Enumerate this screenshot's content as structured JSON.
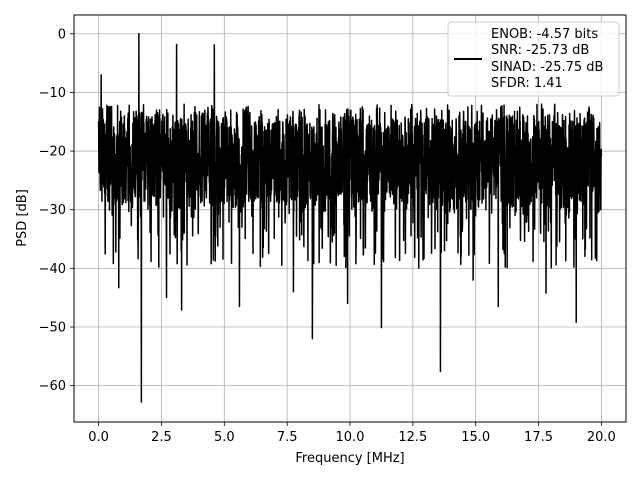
{
  "chart_data": {
    "type": "line",
    "title": "",
    "xlabel": "Frequency [MHz]",
    "ylabel": "PSD [dB]",
    "xlim": [
      -0.98,
      20.98
    ],
    "ylim": [
      -66.2,
      3.2
    ],
    "grid": true,
    "x_ticks": [
      0,
      2.5,
      5,
      7.5,
      10,
      12.5,
      15,
      17.5,
      20
    ],
    "x_tick_labels": [
      "0.0",
      "2.5",
      "5.0",
      "7.5",
      "10.0",
      "12.5",
      "15.0",
      "17.5",
      "20.0"
    ],
    "y_ticks": [
      0,
      -10,
      -20,
      -30,
      -40,
      -50,
      -60
    ],
    "y_tick_labels": [
      "0",
      "−10",
      "−20",
      "−30",
      "−40",
      "−50",
      "−60"
    ],
    "legend_position": "top-right",
    "legend_lines": [
      "ENOB: -4.57 bits",
      "SNR: -25.73 dB",
      "SINAD: -25.75 dB",
      "SFDR: 1.41"
    ],
    "series": [
      {
        "color": "#000000",
        "frequency_range_mhz": [
          0,
          20
        ],
        "noise_floor_band_db": [
          -32,
          -12
        ],
        "peak_db": 0.0,
        "peak_at_mhz": 1.6,
        "minimum_db": -62.8,
        "minimum_at_mhz": 1.7
      }
    ],
    "notable_spikes": [
      {
        "x": 1.6,
        "y": 0.0
      },
      {
        "x": 3.1,
        "y": -1.8
      },
      {
        "x": 4.6,
        "y": -1.9
      },
      {
        "x": 0.1,
        "y": -7.0
      }
    ],
    "notable_dips": [
      {
        "x": 1.7,
        "y": -62.8
      },
      {
        "x": 13.6,
        "y": -57.6
      },
      {
        "x": 8.5,
        "y": -52.0
      },
      {
        "x": 11.25,
        "y": -50.1
      },
      {
        "x": 19.0,
        "y": -49.2
      },
      {
        "x": 3.3,
        "y": -47.1
      },
      {
        "x": 0.8,
        "y": -43.3
      },
      {
        "x": 2.7,
        "y": -45.0
      },
      {
        "x": 5.6,
        "y": -46.5
      },
      {
        "x": 7.75,
        "y": -44.0
      },
      {
        "x": 9.9,
        "y": -46.0
      },
      {
        "x": 14.9,
        "y": -42.0
      },
      {
        "x": 15.9,
        "y": -46.5
      },
      {
        "x": 17.8,
        "y": -44.2
      }
    ]
  }
}
